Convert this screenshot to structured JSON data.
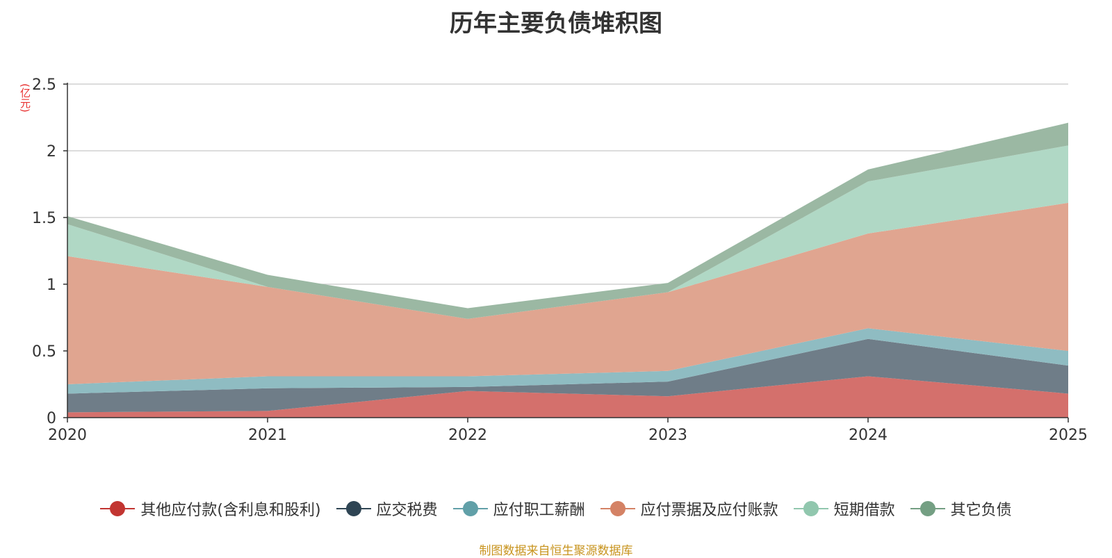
{
  "chart_data": {
    "type": "area",
    "stacked": true,
    "title": "历年主要负债堆积图",
    "unit": "(亿元)",
    "x": [
      "2020",
      "2021",
      "2022",
      "2023",
      "2024",
      "2025"
    ],
    "ylim": [
      0,
      2.5
    ],
    "yticks": [
      0,
      0.5,
      1,
      1.5,
      2,
      2.5
    ],
    "ytick_labels": [
      "0",
      "0.5",
      "1",
      "1.5",
      "2",
      "2.5"
    ],
    "grid": true,
    "legend_position": "bottom",
    "series": [
      {
        "name": "其他应付款(含利息和股利)",
        "values": [
          0.04,
          0.05,
          0.2,
          0.16,
          0.31,
          0.18
        ],
        "color": "#c23531",
        "fill": "#d4706c"
      },
      {
        "name": "应交税费",
        "values": [
          0.14,
          0.17,
          0.03,
          0.11,
          0.28,
          0.21
        ],
        "color": "#2f4554",
        "fill": "#6f7d88"
      },
      {
        "name": "应付职工薪酬",
        "values": [
          0.07,
          0.09,
          0.08,
          0.08,
          0.08,
          0.11
        ],
        "color": "#61a0a8",
        "fill": "#8fbcc2"
      },
      {
        "name": "应付票据及应付账款",
        "values": [
          0.96,
          0.67,
          0.43,
          0.59,
          0.71,
          1.11
        ],
        "color": "#d48265",
        "fill": "#e0a590"
      },
      {
        "name": "短期借款",
        "values": [
          0.24,
          0.0,
          0.0,
          0.0,
          0.39,
          0.43
        ],
        "color": "#91c7ae",
        "fill": "#b0d8c5"
      },
      {
        "name": "其它负债",
        "values": [
          0.06,
          0.09,
          0.08,
          0.07,
          0.09,
          0.17
        ],
        "color": "#749f83",
        "fill": "#9bb8a3"
      }
    ]
  },
  "source_note": "制图数据来自恒生聚源数据库"
}
